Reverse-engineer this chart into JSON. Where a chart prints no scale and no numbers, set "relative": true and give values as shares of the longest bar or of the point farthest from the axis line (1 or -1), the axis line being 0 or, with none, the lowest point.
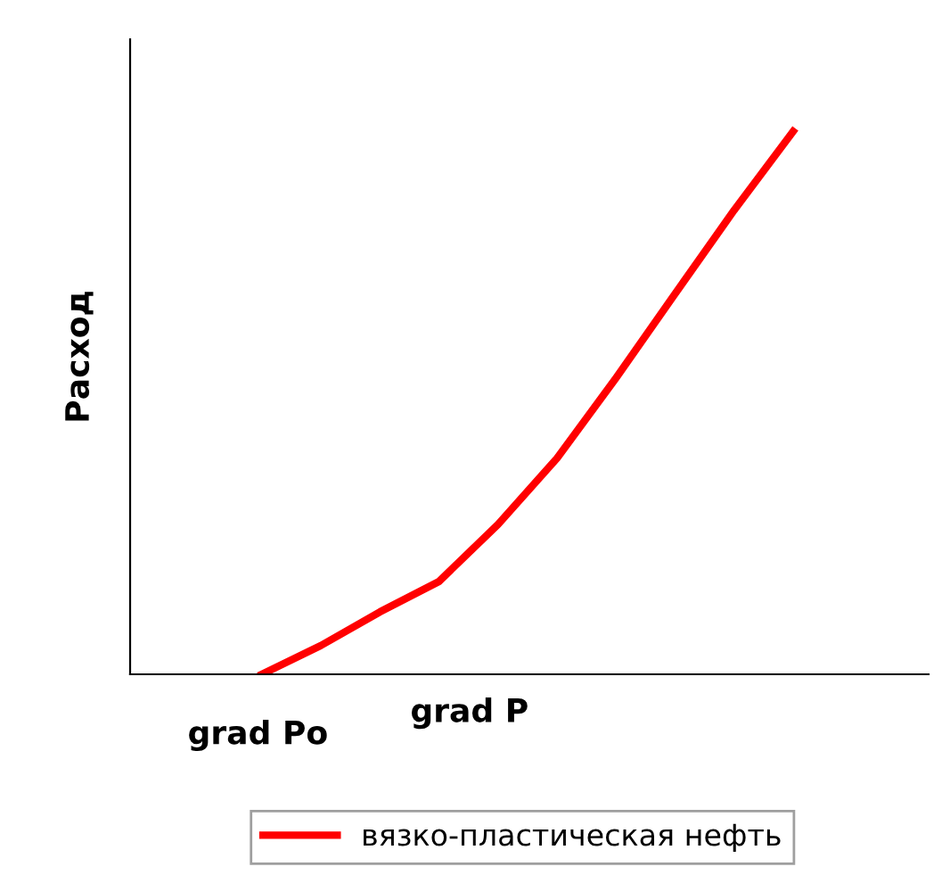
{
  "chart_data": {
    "type": "line",
    "relative": true,
    "ylabel": "Расход",
    "xlabel": "grad P",
    "annotations": [
      "grad Po"
    ],
    "categories": [
      null,
      null,
      null,
      null,
      null,
      null,
      null,
      null,
      null,
      null
    ],
    "series": [
      {
        "name": "вязко-пластическая нефть",
        "color": "#ff0000",
        "values": [
          0,
          0.053,
          0.115,
          0.171,
          0.276,
          0.398,
          0.546,
          0.701,
          0.855,
          1
        ]
      }
    ],
    "legend": "bottom",
    "marker": "none",
    "line_style": "solid"
  }
}
